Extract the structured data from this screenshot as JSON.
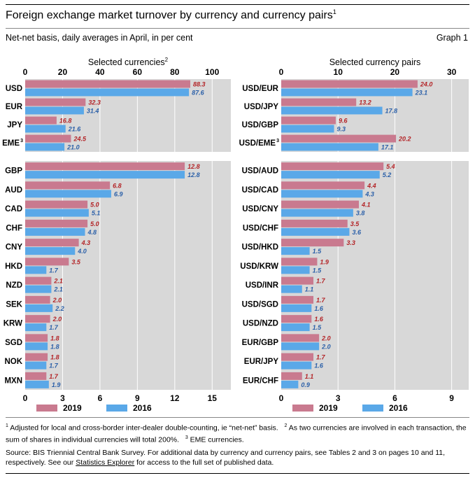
{
  "header": {
    "title": "Foreign exchange market turnover by currency and currency pairs",
    "title_sup": "1",
    "subtitle": "Net-net basis, daily averages in April, in per cent",
    "graph_label": "Graph 1"
  },
  "colors": {
    "y2019": "#c97a8f",
    "y2016": "#5aa8e8",
    "label2019": "#b32326",
    "label2016": "#2a5fa8",
    "panel": "#d8d8d8"
  },
  "chart_data": [
    {
      "type": "bar",
      "title": "Selected currencies",
      "title_sup": "2",
      "categories": [
        "USD",
        "EUR",
        "JPY",
        "EME"
      ],
      "category_sups": [
        "",
        "",
        "",
        "3"
      ],
      "series": [
        {
          "name": "2019",
          "values": [
            88.3,
            32.3,
            16.8,
            24.5
          ]
        },
        {
          "name": "2016",
          "values": [
            87.6,
            31.4,
            21.6,
            21.0
          ]
        }
      ],
      "xlim": [
        0,
        110
      ],
      "xticks": [
        "0",
        "20",
        "40",
        "60",
        "80",
        "100"
      ],
      "xtick_values": [
        0,
        20,
        40,
        60,
        80,
        100
      ],
      "axis_position": "top"
    },
    {
      "type": "bar",
      "categories": [
        "GBP",
        "AUD",
        "CAD",
        "CHF",
        "CNY",
        "HKD",
        "NZD",
        "SEK",
        "KRW",
        "SGD",
        "NOK",
        "MXN"
      ],
      "series": [
        {
          "name": "2019",
          "values": [
            12.8,
            6.8,
            5.0,
            5.0,
            4.3,
            3.5,
            2.1,
            2.0,
            2.0,
            1.8,
            1.8,
            1.7
          ]
        },
        {
          "name": "2016",
          "values": [
            12.8,
            6.9,
            5.1,
            4.8,
            4.0,
            1.7,
            2.1,
            2.2,
            1.7,
            1.8,
            1.7,
            1.9
          ]
        }
      ],
      "xlim": [
        0,
        16.5
      ],
      "xticks": [
        "0",
        "3",
        "6",
        "9",
        "12",
        "15"
      ],
      "xtick_values": [
        0,
        3,
        6,
        9,
        12,
        15
      ],
      "axis_position": "bottom"
    },
    {
      "type": "bar",
      "title": "Selected currency pairs",
      "categories": [
        "USD/EUR",
        "USD/JPY",
        "USD/GBP",
        "USD/EME"
      ],
      "category_sups": [
        "",
        "",
        "",
        "3"
      ],
      "series": [
        {
          "name": "2019",
          "values": [
            24.0,
            13.2,
            9.6,
            20.2
          ]
        },
        {
          "name": "2016",
          "values": [
            23.1,
            17.8,
            9.3,
            17.1
          ]
        }
      ],
      "xlim": [
        0,
        33
      ],
      "xticks": [
        "0",
        "10",
        "20",
        "30"
      ],
      "xtick_values": [
        0,
        10,
        20,
        30
      ],
      "axis_position": "top"
    },
    {
      "type": "bar",
      "categories": [
        "USD/AUD",
        "USD/CAD",
        "USD/CNY",
        "USD/CHF",
        "USD/HKD",
        "USD/KRW",
        "USD/INR",
        "USD/SGD",
        "USD/NZD",
        "EUR/GBP",
        "EUR/JPY",
        "EUR/CHF"
      ],
      "series": [
        {
          "name": "2019",
          "values": [
            5.4,
            4.4,
            4.1,
            3.5,
            3.3,
            1.9,
            1.7,
            1.7,
            1.6,
            2.0,
            1.7,
            1.1
          ]
        },
        {
          "name": "2016",
          "values": [
            5.2,
            4.3,
            3.8,
            3.6,
            1.5,
            1.5,
            1.1,
            1.6,
            1.5,
            2.0,
            1.6,
            0.9
          ]
        }
      ],
      "xlim": [
        0,
        9.9
      ],
      "xticks": [
        "0",
        "3",
        "6",
        "9"
      ],
      "xtick_values": [
        0,
        3,
        6,
        9
      ],
      "axis_position": "bottom"
    }
  ],
  "legend": {
    "items": [
      "2019",
      "2016"
    ]
  },
  "footnotes": {
    "n1": "Adjusted for local and cross-border inter-dealer double-counting, ie “net-net” basis.",
    "n2": "As two currencies are involved in each transaction, the sum of shares in individual currencies will total 200%.",
    "n3": "EME currencies."
  },
  "source": {
    "part1": "Source: BIS Triennial Central Bank Survey. For additional data by currency and currency pairs, see Tables 2 and 3 on pages 10 and 11, respectively. See our ",
    "link": "Statistics Explorer",
    "part2": " for access to the full set of published data."
  }
}
